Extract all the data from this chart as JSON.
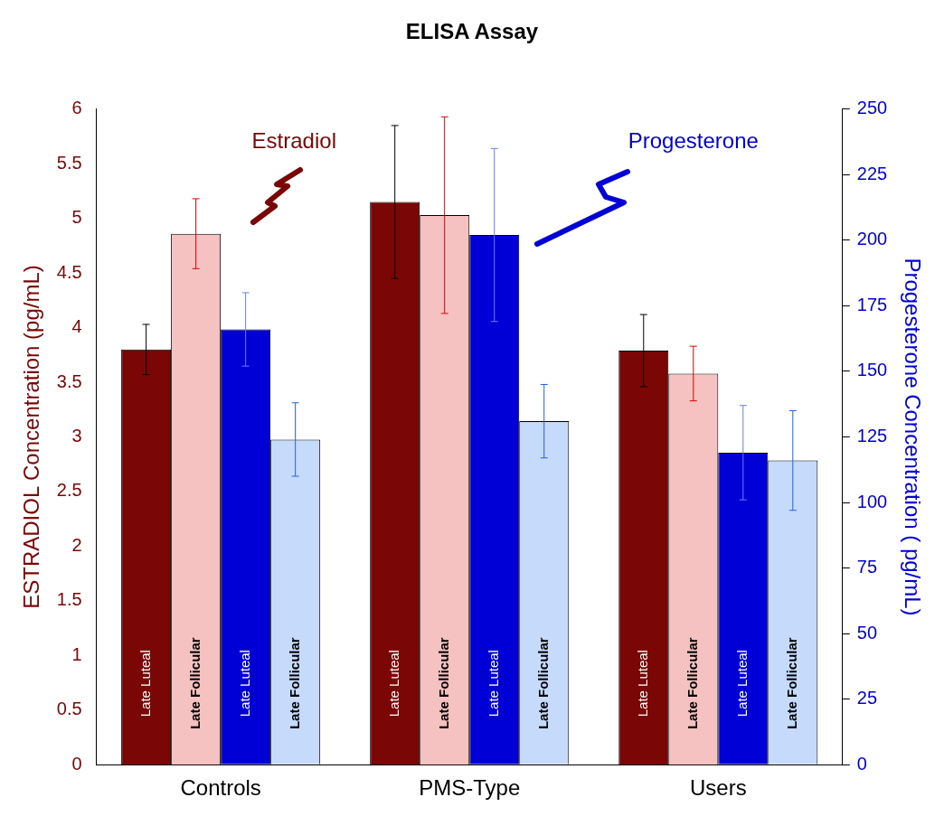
{
  "chart_data": {
    "type": "bar",
    "title": "ELISA Assay",
    "categories": [
      "Controls",
      "PMS-Type",
      "Users"
    ],
    "ylabel": "ESTRADIOL Concentration (pg/mL)",
    "y2label": "Progesterone Concentration ( pg/mL)",
    "ylim": [
      0,
      6
    ],
    "yticks": [
      0,
      0.5,
      1,
      1.5,
      2,
      2.5,
      3,
      3.5,
      4,
      4.5,
      5,
      5.5,
      6
    ],
    "y2lim": [
      0,
      250
    ],
    "y2ticks": [
      0,
      25,
      50,
      75,
      100,
      125,
      150,
      175,
      200,
      225,
      250
    ],
    "grid": false,
    "legend": false,
    "annotations": [
      "Estradiol",
      "Progesterone"
    ],
    "series": [
      {
        "name": "Late Luteal",
        "color": "#7a0606",
        "values": [
          3.8,
          5.15,
          3.79
        ],
        "errors": [
          0.23,
          0.7,
          0.33
        ]
      },
      {
        "name": "Late Follicular",
        "color": "#f5c1c1",
        "values": [
          4.86,
          5.03,
          3.58
        ],
        "errors": [
          0.32,
          0.9,
          0.25
        ]
      },
      {
        "name": "Late Luteal",
        "color": "#0000d6",
        "axis": "y2",
        "values": [
          166,
          202,
          119
        ],
        "errors": [
          14,
          33,
          18
        ]
      },
      {
        "name": "Late Follicular",
        "color": "#c6dbfc",
        "axis": "y2",
        "values": [
          124,
          131,
          116
        ],
        "errors": [
          14,
          14,
          19
        ]
      }
    ]
  }
}
